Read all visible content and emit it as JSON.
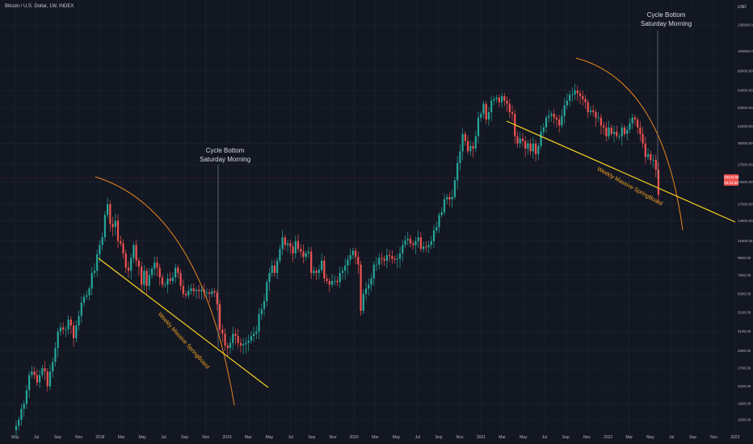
{
  "header": {
    "title": "Bitcoin / U.S. Dollar, 1W, INDEX",
    "currency": "USD"
  },
  "price_tags": {
    "last_price": "19442.55",
    "countdown": "03:23:45"
  },
  "annotations": {
    "cycle_bottom_1": {
      "line1": "Cycle Bottom",
      "line2": "Saturday Morning"
    },
    "cycle_bottom_2": {
      "line1": "Cycle Bottom",
      "line2": "Saturday Morning"
    },
    "springboard_1": "Weekly Massive SpringBoard",
    "springboard_2": "Weekly Massive SpringBoard"
  },
  "colors": {
    "up": "#26a69a",
    "down": "#ef5350",
    "arc": "#e8861c",
    "trend": "#f5d020",
    "bg": "#131722",
    "grid": "#1f2433"
  },
  "chart_data": {
    "type": "candlestick",
    "title": "Bitcoin / U.S. Dollar, 1W, INDEX",
    "y_scale": "log",
    "y_ticks": [
      1500,
      1800,
      2200,
      2700,
      3300,
      4100,
      5100,
      6300,
      7800,
      9500,
      11500,
      14500,
      17500,
      22500,
      27500,
      35000,
      42500,
      52500,
      64000,
      80000,
      100000,
      135000
    ],
    "y_tick_labels": [
      "1500.00",
      "1800.00",
      "2200.00",
      "2700.00",
      "3300.00",
      "4100.00",
      "5100.00",
      "6300.00",
      "7800.00",
      "9500.00",
      "11500.00",
      "14500.00",
      "17500.00",
      "22500.00",
      "27500.00",
      "35000.00",
      "42500.00",
      "52500.00",
      "64000.00",
      "80000.00",
      "100000.00",
      "135000.00"
    ],
    "x_tick_labels": [
      "May",
      "Jul",
      "Sep",
      "Nov",
      "2018",
      "Mar",
      "May",
      "Jul",
      "Sep",
      "Nov",
      "2019",
      "Mar",
      "May",
      "Jul",
      "Sep",
      "Nov",
      "2020",
      "Mar",
      "May",
      "Jul",
      "Sep",
      "Nov",
      "2021",
      "Mar",
      "May",
      "Jul",
      "Sep",
      "Nov",
      "2022",
      "Mar",
      "May",
      "Jul",
      "Sep",
      "Nov",
      "2023"
    ],
    "weekly_close": [
      1400,
      1500,
      1700,
      1800,
      2100,
      2500,
      2600,
      2500,
      2300,
      2500,
      2700,
      2600,
      2200,
      2600,
      2900,
      3400,
      4100,
      4300,
      4200,
      4200,
      4700,
      4400,
      3800,
      4400,
      4900,
      5700,
      6100,
      6200,
      6700,
      8000,
      8200,
      9900,
      11000,
      12000,
      15500,
      17500,
      14000,
      13500,
      14500,
      11500,
      11200,
      10000,
      8500,
      8200,
      9500,
      11000,
      9200,
      8600,
      7000,
      8200,
      6900,
      7800,
      8400,
      9000,
      8500,
      7600,
      7000,
      7000,
      7500,
      7300,
      7600,
      8500,
      8000,
      6900,
      6300,
      6200,
      6500,
      6700,
      6500,
      6600,
      6500,
      6600,
      6400,
      6400,
      6300,
      6500,
      6400,
      5600,
      4200,
      4000,
      3500,
      3400,
      3600,
      4000,
      3900,
      3600,
      3500,
      3550,
      3600,
      3700,
      3900,
      4000,
      4100,
      5000,
      5300,
      5800,
      7200,
      8000,
      8700,
      8000,
      9200,
      10500,
      12000,
      11000,
      11200,
      10800,
      10000,
      11500,
      10500,
      10200,
      9600,
      10000,
      10200,
      8000,
      8200,
      8000,
      8300,
      9200,
      7500,
      7300,
      7000,
      7300,
      7300,
      7200,
      8000,
      8200,
      8700,
      9300,
      9800,
      10300,
      9600,
      8800,
      5200,
      6300,
      6700,
      7000,
      7500,
      8800,
      8800,
      9500,
      9400,
      9200,
      9800,
      9700,
      9400,
      9300,
      9400,
      10000,
      11000,
      11600,
      11800,
      11200,
      11000,
      11500,
      12000,
      10500,
      10800,
      10700,
      11000,
      11500,
      13000,
      13500,
      15500,
      16000,
      18500,
      19000,
      18500,
      19000,
      23000,
      28000,
      32000,
      39000,
      36000,
      32000,
      34000,
      33000,
      38000,
      47000,
      49000,
      55000,
      46000,
      50000,
      57000,
      58000,
      59000,
      56000,
      60000,
      57000,
      55000,
      50000,
      49000,
      38000,
      35000,
      37000,
      36000,
      33000,
      35000,
      32000,
      35000,
      31000,
      34000,
      40000,
      42000,
      47000,
      48000,
      49000,
      47000,
      46000,
      43000,
      48000,
      54000,
      57000,
      61000,
      61000,
      64000,
      62000,
      60000,
      58000,
      56000,
      50000,
      51000,
      50000,
      47000,
      47000,
      43000,
      42000,
      38000,
      42000,
      39000,
      40000,
      38000,
      38000,
      42000,
      39000,
      41000,
      44000,
      47000,
      46000,
      42000,
      39000,
      35000,
      30000,
      31000,
      29000,
      29000,
      26000,
      19500
    ]
  }
}
